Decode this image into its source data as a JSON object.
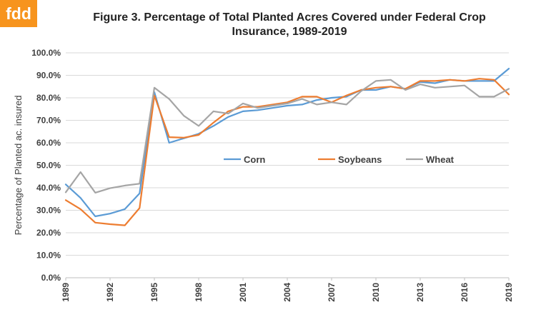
{
  "logo": {
    "text": "fdd",
    "color": "#f7941d"
  },
  "chart_data": {
    "type": "line",
    "title_line1": "Figure 3.  Percentage of Total Planted Acres Covered under Federal Crop",
    "title_line2": "Insurance, 1989-2019",
    "xlabel": "",
    "ylabel": "Percentage of Planted ac. insured",
    "xlim": [
      1989,
      2019
    ],
    "ylim": [
      0,
      100
    ],
    "x_ticks": [
      "1989",
      "1992",
      "1995",
      "1998",
      "2001",
      "2004",
      "2007",
      "2010",
      "2013",
      "2016",
      "2019"
    ],
    "y_ticks": [
      "0.0%",
      "10.0%",
      "20.0%",
      "30.0%",
      "40.0%",
      "50.0%",
      "60.0%",
      "70.0%",
      "80.0%",
      "90.0%",
      "100.0%"
    ],
    "grid": true,
    "legend_position": "middle",
    "x": [
      1989,
      1990,
      1991,
      1992,
      1993,
      1994,
      1995,
      1996,
      1997,
      1998,
      1999,
      2000,
      2001,
      2002,
      2003,
      2004,
      2005,
      2006,
      2007,
      2008,
      2009,
      2010,
      2011,
      2012,
      2013,
      2014,
      2015,
      2016,
      2017,
      2018,
      2019
    ],
    "series": [
      {
        "name": "Corn",
        "color": "#5b9bd5",
        "values": [
          41.5,
          35.5,
          27.3,
          28.5,
          30.5,
          37.5,
          82.5,
          60,
          62,
          64,
          67.5,
          71.5,
          74,
          74.5,
          75.5,
          76.5,
          77,
          79,
          80,
          80.5,
          83.5,
          83.5,
          85,
          84,
          87,
          86.5,
          88,
          87.5,
          87.5,
          87.5,
          93
        ]
      },
      {
        "name": "Soybeans",
        "color": "#ed7d31",
        "values": [
          34.5,
          30.5,
          24.5,
          23.8,
          23.3,
          31,
          81,
          62.5,
          62.3,
          63.5,
          69,
          74,
          76,
          76,
          77,
          78,
          80.5,
          80.5,
          78,
          81,
          83.5,
          84.5,
          85,
          84,
          87.5,
          87.5,
          88,
          87.5,
          88.5,
          88,
          81.5
        ]
      },
      {
        "name": "Wheat",
        "color": "#a5a5a5",
        "values": [
          38,
          47,
          37.8,
          39.8,
          41,
          41.8,
          84.5,
          79.5,
          72,
          67.5,
          74,
          73,
          77.5,
          75.5,
          76.5,
          77.5,
          79.5,
          77,
          78,
          77,
          83,
          87.5,
          88,
          83.5,
          86,
          84.5,
          85,
          85.5,
          80.5,
          80.5,
          84
        ]
      }
    ]
  }
}
